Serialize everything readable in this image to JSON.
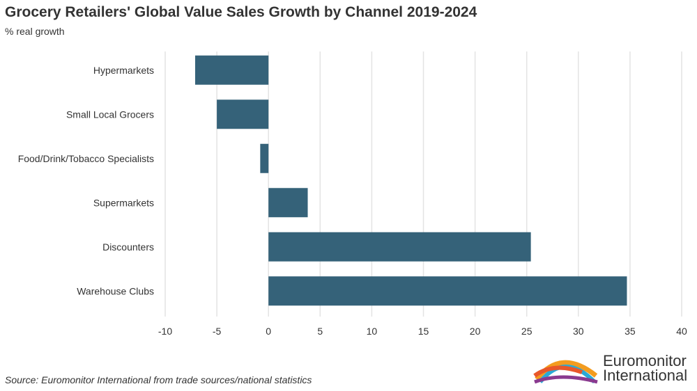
{
  "title": "Grocery Retailers' Global Value Sales Growth by Channel 2019-2024",
  "subtitle": "% real growth",
  "source": "Source: Euromonitor International from trade sources/national statistics",
  "logo": {
    "line1": "Euromonitor",
    "line2": "International"
  },
  "colors": {
    "bar": "#356279",
    "grid": "#e3e3e3"
  },
  "chart_data": {
    "type": "bar",
    "orientation": "horizontal",
    "title": "Grocery Retailers' Global Value Sales Growth by Channel 2019-2024",
    "ylabel": "% real growth",
    "categories": [
      "Hypermarkets",
      "Small Local Grocers",
      "Food/Drink/Tobacco Specialists",
      "Supermarkets",
      "Discounters",
      "Warehouse Clubs"
    ],
    "values": [
      -7.1,
      -5.0,
      -0.8,
      3.8,
      25.4,
      34.7
    ],
    "xlim": [
      -10,
      40
    ],
    "xticks": [
      "-10",
      "-5",
      "0",
      "5",
      "10",
      "15",
      "20",
      "25",
      "30",
      "35",
      "40"
    ],
    "grid": true
  }
}
